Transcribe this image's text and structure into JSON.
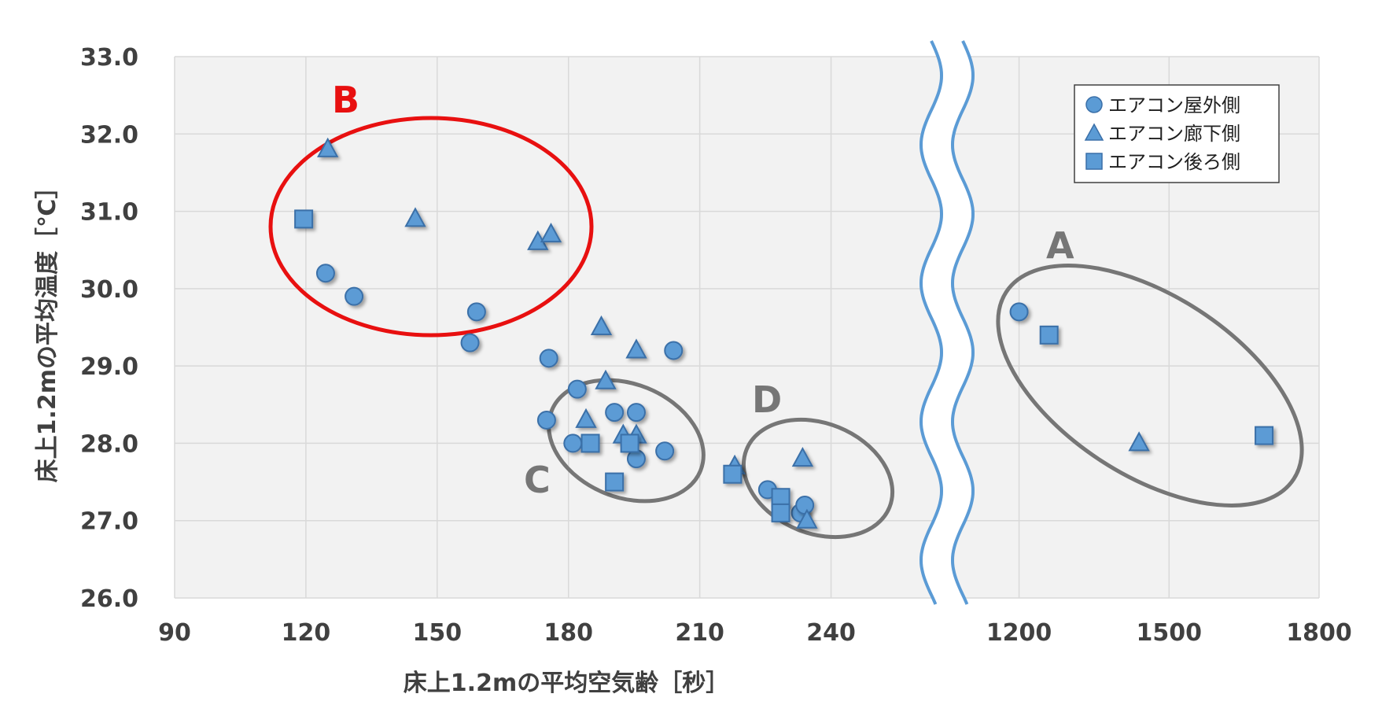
{
  "chart_data": {
    "type": "scatter",
    "xlabel": "床上1.2mの平均空気齢［秒］",
    "ylabel": "床上1.2mの平均温度［℃］",
    "ylim": [
      26.0,
      33.0
    ],
    "y_ticks": [
      "26.0",
      "27.0",
      "28.0",
      "29.0",
      "30.0",
      "31.0",
      "32.0",
      "33.0"
    ],
    "x_axis_broken": true,
    "x_segments": [
      {
        "range": [
          90,
          255
        ],
        "ticks": [
          "90",
          "120",
          "150",
          "180",
          "210",
          "240"
        ]
      },
      {
        "range": [
          1100,
          1800
        ],
        "ticks": [
          "1200",
          "1500",
          "1800"
        ]
      }
    ],
    "grid": true,
    "legend_position": "top-right",
    "series": [
      {
        "name": "エアコン屋外側",
        "marker": "circle",
        "color": "#5b9bd5",
        "points": [
          [
            124.5,
            30.2
          ],
          [
            131,
            29.9
          ],
          [
            157.5,
            29.3
          ],
          [
            159,
            29.7
          ],
          [
            175.5,
            29.1
          ],
          [
            175,
            28.3
          ],
          [
            182,
            28.7
          ],
          [
            181,
            28.0
          ],
          [
            190.5,
            28.4
          ],
          [
            195.5,
            28.4
          ],
          [
            195.5,
            27.8
          ],
          [
            202,
            27.9
          ],
          [
            204,
            29.2
          ],
          [
            225.5,
            27.4
          ],
          [
            233,
            27.1
          ],
          [
            234,
            27.2
          ],
          [
            1200,
            29.7
          ]
        ]
      },
      {
        "name": "エアコン廊下側",
        "marker": "triangle",
        "color": "#5b9bd5",
        "points": [
          [
            125,
            31.8
          ],
          [
            145,
            30.9
          ],
          [
            173,
            30.6
          ],
          [
            176,
            30.7
          ],
          [
            184,
            28.3
          ],
          [
            187.5,
            29.5
          ],
          [
            188.5,
            28.8
          ],
          [
            192.5,
            28.1
          ],
          [
            195.5,
            28.1
          ],
          [
            195.5,
            29.2
          ],
          [
            218,
            27.7
          ],
          [
            233.5,
            27.8
          ],
          [
            234.5,
            27.0
          ],
          [
            1440,
            28.0
          ]
        ]
      },
      {
        "name": "エアコン後ろ側",
        "marker": "square",
        "color": "#5b9bd5",
        "points": [
          [
            119.5,
            30.9
          ],
          [
            185,
            28.0
          ],
          [
            190.5,
            27.5
          ],
          [
            194,
            28.0
          ],
          [
            217.5,
            27.6
          ],
          [
            228.5,
            27.3
          ],
          [
            228.5,
            27.1
          ],
          [
            1260,
            29.4
          ],
          [
            1690,
            28.1
          ]
        ]
      }
    ],
    "annotations": [
      {
        "label": "B",
        "color": "#e81010"
      },
      {
        "label": "C",
        "color": "#767676"
      },
      {
        "label": "D",
        "color": "#767676"
      },
      {
        "label": "A",
        "color": "#767676"
      }
    ],
    "colors": {
      "plot_background": "#f2f2f2",
      "grid": "#d9d9d9",
      "marker_fill": "#5b9bd5",
      "marker_stroke": "#3a6fa8",
      "break_line": "#5b9bd5"
    }
  }
}
